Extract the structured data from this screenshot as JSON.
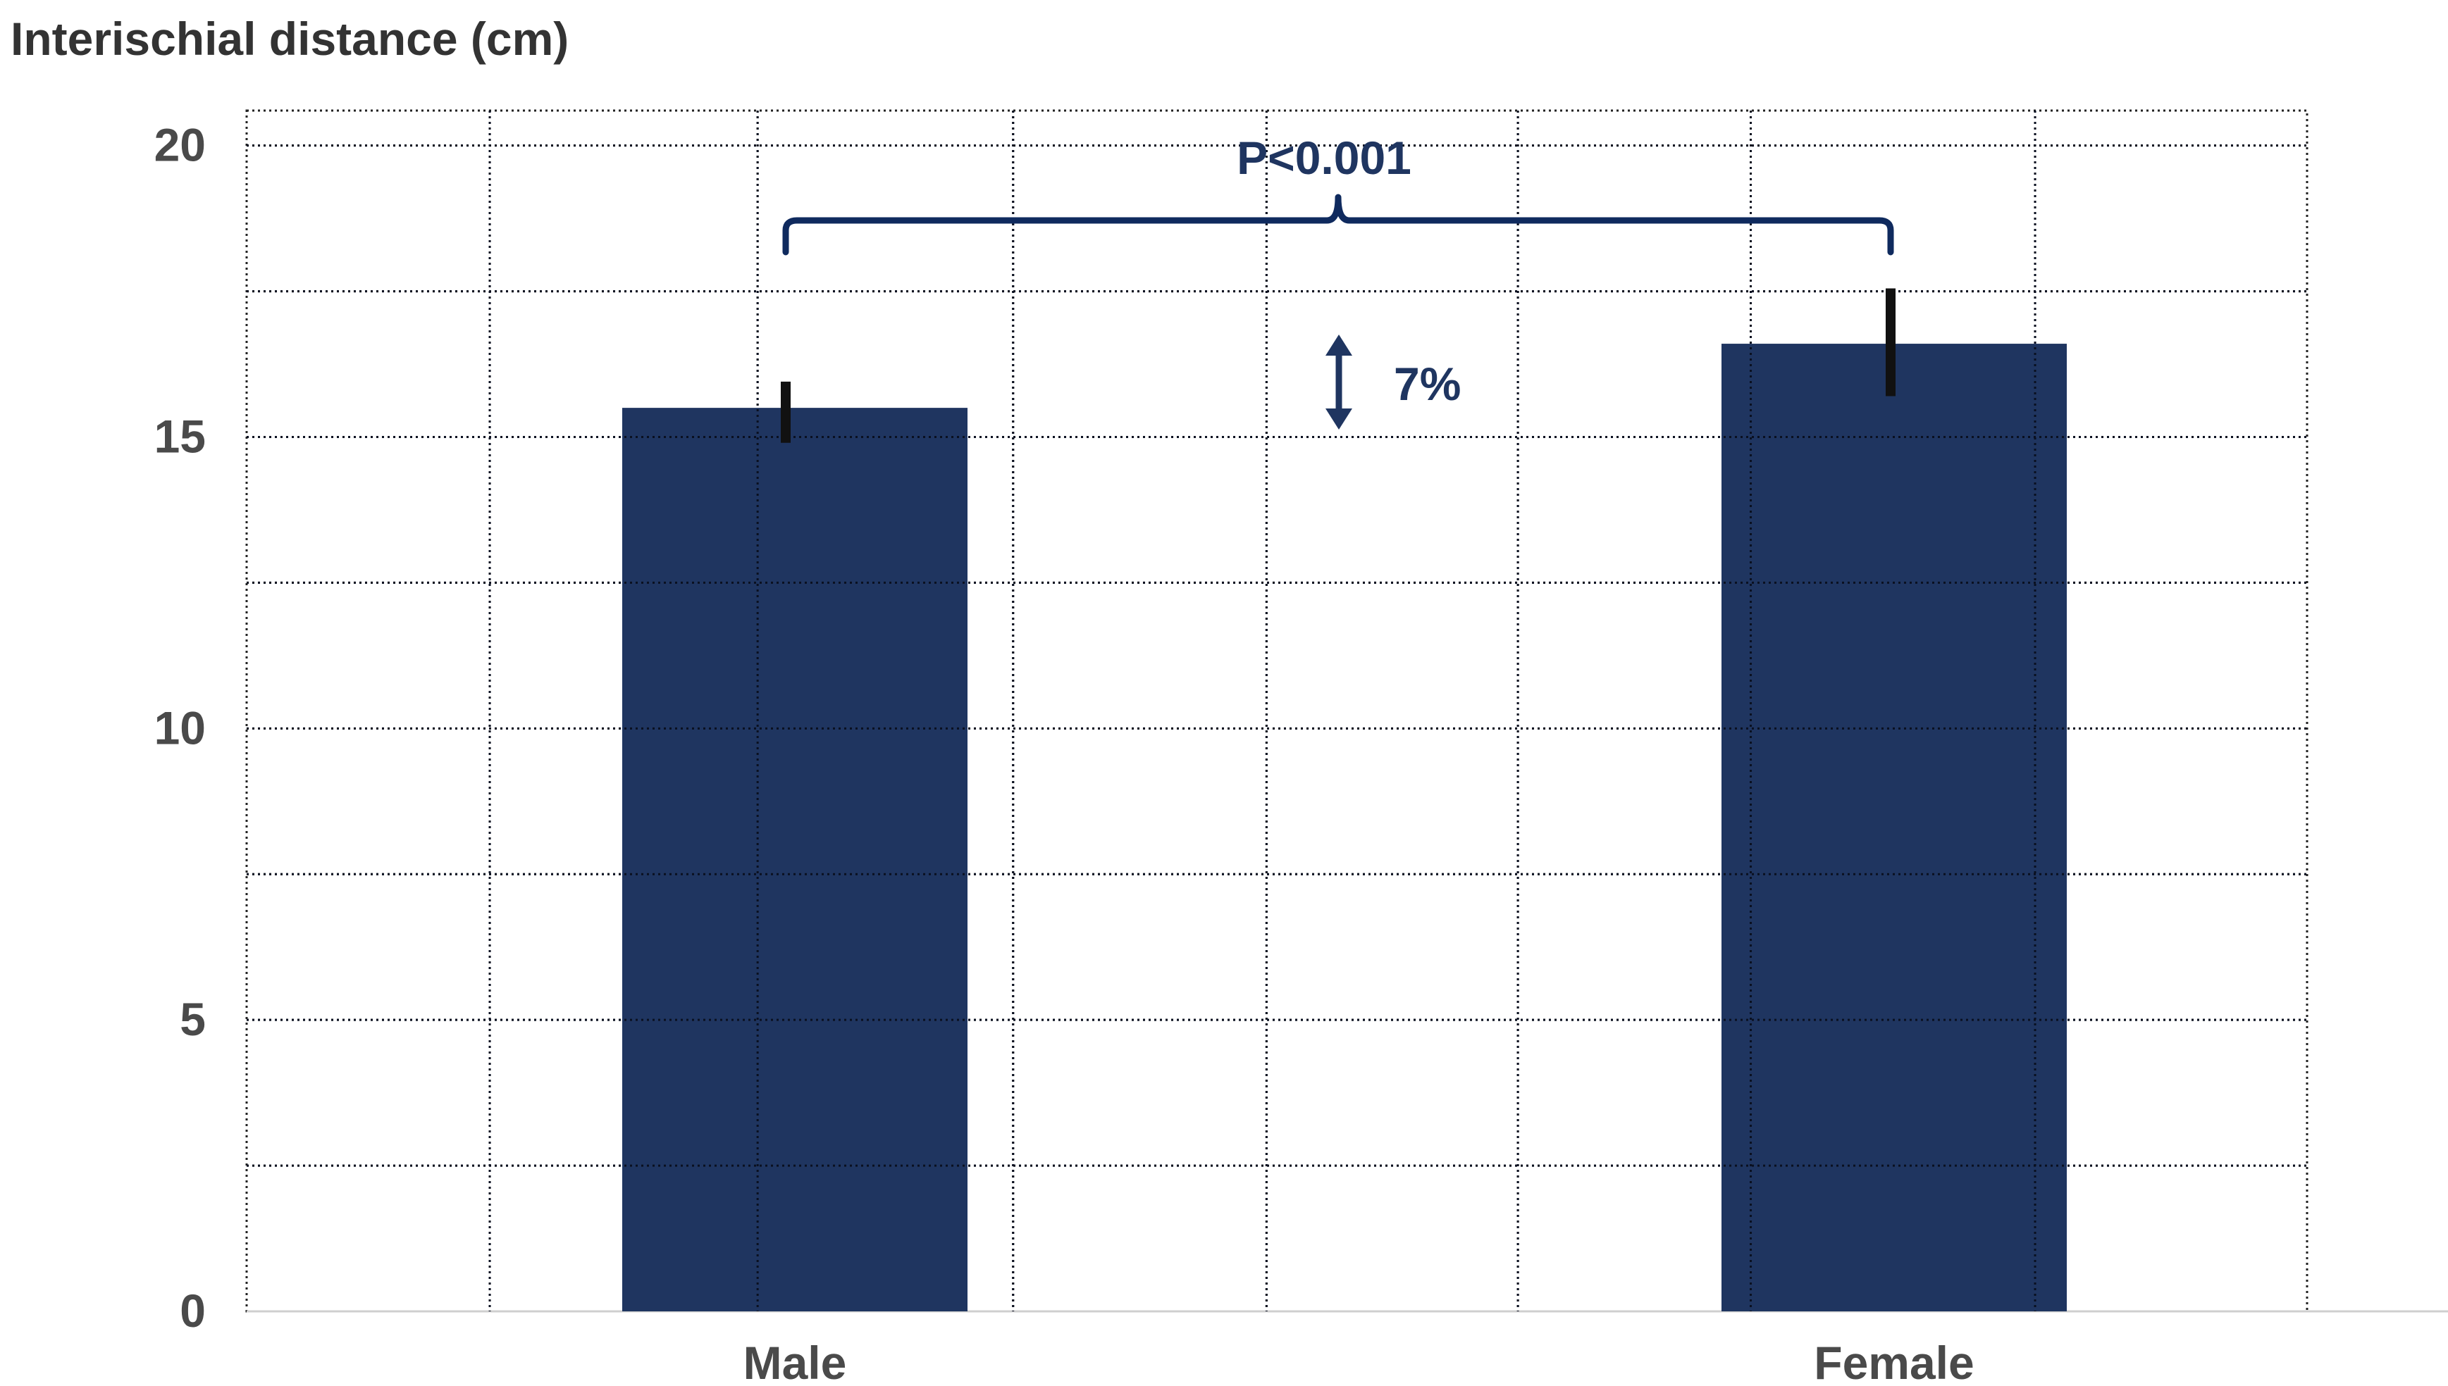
{
  "chart_data": {
    "type": "bar",
    "ylabel": "Interischial distance (cm)",
    "xlabel": "",
    "categories": [
      "Male",
      "Female"
    ],
    "values": [
      15.5,
      16.6
    ],
    "error_up": [
      0.45,
      0.95
    ],
    "error_down": [
      0.6,
      0.9
    ],
    "ylim": [
      0,
      20.6
    ],
    "yticks": [
      0,
      5,
      10,
      15,
      20
    ],
    "grid": true,
    "grid_style": "dotted",
    "bar_color": "#1f3560",
    "error_color": "#111111",
    "annotations": {
      "significance": "P<0.001",
      "difference": "7%",
      "annotation_color": "#0f2a5e"
    }
  }
}
